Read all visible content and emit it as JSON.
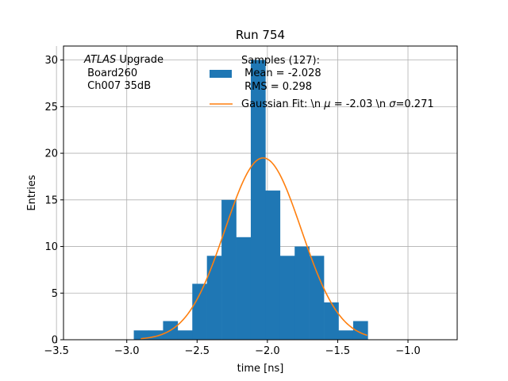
{
  "chart_data": {
    "type": "bar",
    "title": "Run 754",
    "xlabel": "time [ns]",
    "ylabel": "Entries",
    "xlim": [
      -3.45,
      -0.65
    ],
    "ylim": [
      0,
      31.5
    ],
    "grid": true,
    "x_ticks": [
      -3.5,
      -3.0,
      -2.5,
      -2.0,
      -1.5,
      -1.0
    ],
    "x_tick_labels": [
      "−3.5",
      "−3.0",
      "−2.5",
      "−2.0",
      "−1.5",
      "−1.0"
    ],
    "y_ticks": [
      0,
      5,
      10,
      15,
      20,
      25,
      30
    ],
    "y_tick_labels": [
      "0",
      "5",
      "10",
      "15",
      "20",
      "25",
      "30"
    ],
    "bin_edges": [
      -2.95,
      -2.846,
      -2.742,
      -2.638,
      -2.534,
      -2.43,
      -2.326,
      -2.222,
      -2.118,
      -2.014,
      -1.91,
      -1.806,
      -1.702,
      -1.598,
      -1.494,
      -1.39,
      -1.286,
      -1.182
    ],
    "bin_counts": [
      1,
      1,
      2,
      1,
      6,
      9,
      15,
      11,
      30,
      16,
      9,
      10,
      9,
      4,
      1,
      2,
      0
    ],
    "annotation": {
      "line1_italic": "ATLAS",
      "line1_rest": " Upgrade",
      "line2": " Board260",
      "line3": " Ch007 35dB"
    },
    "legend": {
      "placement": "top-right",
      "hist_label_lines": [
        "Samples (127):",
        " Mean = -2.028",
        " RMS = 0.298"
      ],
      "fit_label_pre": "Gaussian Fit: \\n ",
      "fit_mu_symbol": "μ",
      "fit_mid": " = -2.03 \\n ",
      "fit_sigma_symbol": "σ",
      "fit_post": "=0.271"
    },
    "series": [
      {
        "name": "Samples (127):  Mean = -2.028  RMS = 0.298",
        "kind": "histogram",
        "color": "#1f77b4"
      },
      {
        "name": "Gaussian Fit: \\n μ = -2.03 \\n σ=0.271",
        "kind": "line",
        "color": "#ff7f0e",
        "amplitude": 19.5,
        "mean": -2.03,
        "sigma": 0.271,
        "x_range": [
          -2.9,
          -1.29
        ]
      }
    ]
  }
}
